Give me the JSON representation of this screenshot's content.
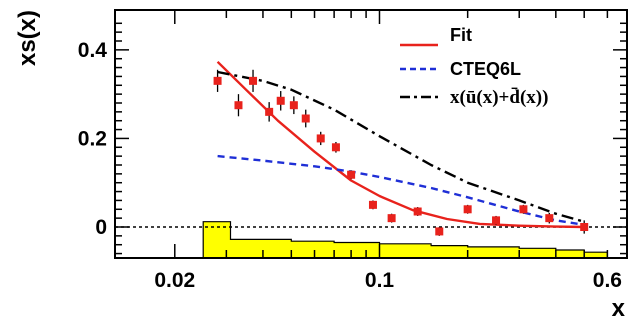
{
  "chart_data": {
    "type": "scatter",
    "xlabel": "x",
    "ylabel": "xs(x)",
    "x_scale": "log",
    "xlim": [
      0.0125,
      0.7
    ],
    "ylim": [
      -0.07,
      0.49
    ],
    "x_tick_labels": [
      {
        "value": 0.02,
        "label": "0.02"
      },
      {
        "value": 0.1,
        "label": "0.1"
      },
      {
        "value": 0.6,
        "label": "0.6"
      }
    ],
    "y_tick_labels": [
      {
        "value": 0.0,
        "label": "0"
      },
      {
        "value": 0.2,
        "label": "0.2"
      },
      {
        "value": 0.4,
        "label": "0.4"
      }
    ],
    "zero_line": 0.0,
    "legend": {
      "position": "top-right",
      "entries": [
        {
          "label": "Fit",
          "color": "#e8221c",
          "style": "solid"
        },
        {
          "label": "CTEQ6L",
          "color": "#1f2fd6",
          "style": "dashed"
        },
        {
          "label": "x(ū(x)+d̄(x))",
          "color": "#000000",
          "style": "dash-dot"
        }
      ]
    },
    "colors": {
      "points": "#e8221c",
      "fit": "#e8221c",
      "cteq": "#1f2fd6",
      "sum": "#000000",
      "band_fill": "#ffff00",
      "band_edge": "#000000"
    },
    "series": [
      {
        "legend_label": "Fit",
        "style": "solid",
        "color": "#e8221c",
        "x": [
          0.028,
          0.035,
          0.045,
          0.06,
          0.08,
          0.1,
          0.13,
          0.17,
          0.22,
          0.3,
          0.4,
          0.5
        ],
        "y": [
          0.373,
          0.31,
          0.24,
          0.17,
          0.105,
          0.07,
          0.038,
          0.018,
          0.007,
          0.003,
          0.001,
          0.0
        ]
      },
      {
        "legend_label": "CTEQ6L",
        "style": "dashed",
        "color": "#1f2fd6",
        "x": [
          0.028,
          0.04,
          0.06,
          0.08,
          0.1,
          0.15,
          0.2,
          0.3,
          0.4,
          0.5
        ],
        "y": [
          0.16,
          0.15,
          0.137,
          0.125,
          0.113,
          0.088,
          0.067,
          0.035,
          0.015,
          0.005
        ]
      },
      {
        "legend_label": "x(ū(x)+d̄(x))",
        "style": "dash-dot",
        "color": "#000000",
        "x": [
          0.028,
          0.04,
          0.05,
          0.07,
          0.1,
          0.15,
          0.2,
          0.3,
          0.4,
          0.5
        ],
        "y": [
          0.35,
          0.33,
          0.31,
          0.265,
          0.205,
          0.14,
          0.1,
          0.06,
          0.03,
          0.012
        ]
      }
    ],
    "points": {
      "color": "#e8221c",
      "x": [
        0.028,
        0.033,
        0.037,
        0.042,
        0.046,
        0.051,
        0.056,
        0.063,
        0.071,
        0.08,
        0.095,
        0.11,
        0.135,
        0.16,
        0.2,
        0.25,
        0.31,
        0.38,
        0.5
      ],
      "y": [
        0.33,
        0.275,
        0.33,
        0.26,
        0.285,
        0.275,
        0.245,
        0.2,
        0.18,
        0.118,
        0.05,
        0.02,
        0.035,
        -0.01,
        0.04,
        0.015,
        0.04,
        0.02,
        0.0
      ],
      "err": [
        0.025,
        0.025,
        0.025,
        0.022,
        0.022,
        0.02,
        0.02,
        0.015,
        0.012,
        0.01,
        0.01,
        0.01,
        0.01,
        0.01,
        0.01,
        0.01,
        0.01,
        0.012,
        0.015
      ]
    },
    "band": {
      "x_edges": [
        0.025,
        0.031,
        0.05,
        0.07,
        0.1,
        0.15,
        0.2,
        0.3,
        0.4,
        0.5,
        0.6
      ],
      "top": [
        0.012,
        -0.028,
        -0.032,
        -0.035,
        -0.038,
        -0.042,
        -0.045,
        -0.048,
        -0.052,
        -0.057
      ],
      "bottom": -0.07
    }
  }
}
